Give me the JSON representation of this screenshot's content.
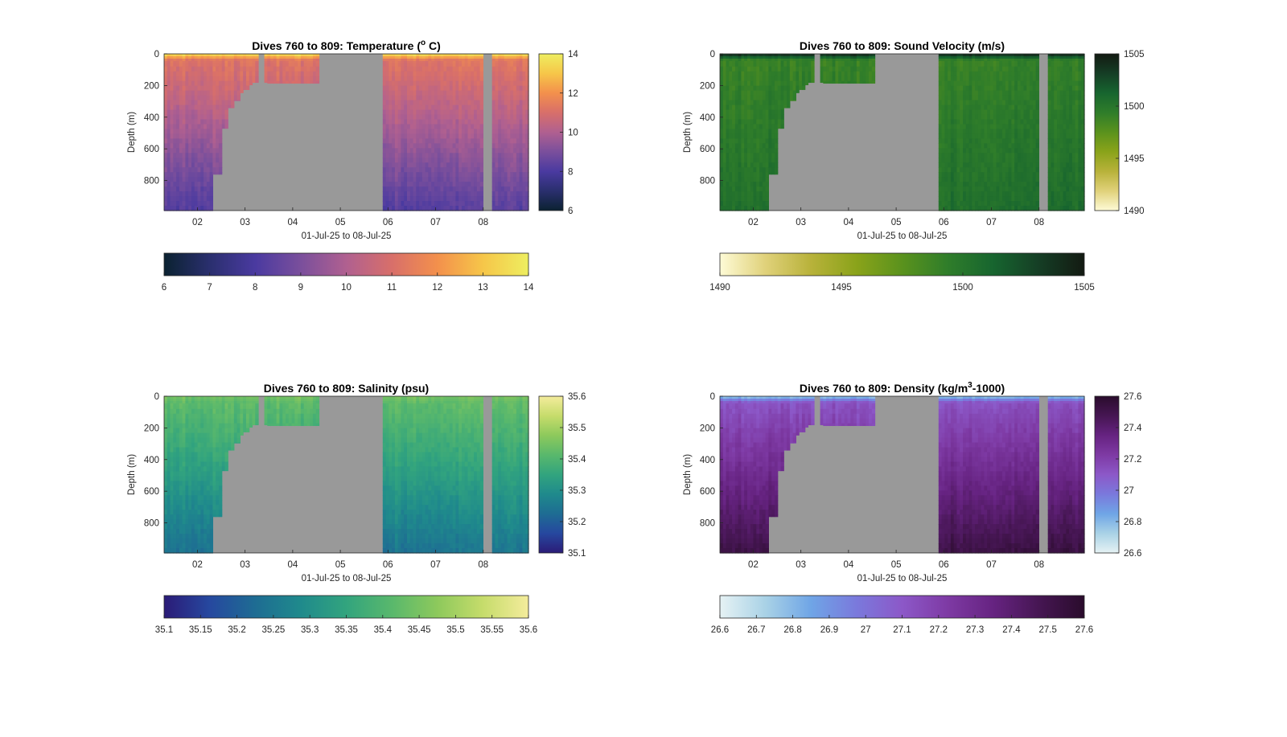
{
  "figure": {
    "background": "#ffffff",
    "land_color": "#999999"
  },
  "chart_data": [
    {
      "type": "heatmap",
      "title": "Dives 760 to 809: Temperature (° C)",
      "title_parts": [
        "Dives 760 to 809: Temperature (",
        "o",
        " C)"
      ],
      "title_style": "sup",
      "variable": "temperature",
      "xlabel": "01-Jul-25 to 08-Jul-25",
      "ylabel": "Depth (m)",
      "x_ticks": [
        "02",
        "03",
        "04",
        "05",
        "06",
        "07",
        "08"
      ],
      "xlim": [
        1.3,
        8.95
      ],
      "y_ticks": [
        0,
        200,
        400,
        600,
        800
      ],
      "ylim": [
        0,
        990
      ],
      "y_reversed": true,
      "clim": [
        6,
        14
      ],
      "side_colorbar_ticks": [
        "6",
        "8",
        "10",
        "12",
        "14"
      ],
      "bottom_colorbar_ticks": [
        "6",
        "7",
        "8",
        "9",
        "10",
        "11",
        "12",
        "13",
        "14"
      ],
      "colormap": [
        "#0b2231",
        "#2a2f6e",
        "#4a3aa0",
        "#7a4f9c",
        "#b06090",
        "#d86f6a",
        "#f3904c",
        "#f6c649",
        "#eeee60"
      ],
      "profile": {
        "surface": 13.7,
        "mixed_layer_depth": 40,
        "thermocline": 11.2,
        "deep": 8.2
      },
      "no_data_x_ranges": [
        [
          4.52,
          5.87
        ],
        [
          8.0,
          8.16
        ]
      ],
      "shallow_profiles": [
        [
          3.28,
          3.42,
          0
        ],
        [
          3.42,
          3.48,
          180
        ],
        [
          3.48,
          4.52,
          185
        ]
      ],
      "bathymetry_steps": [
        [
          2.35,
          760
        ],
        [
          2.5,
          470
        ],
        [
          2.65,
          340
        ],
        [
          2.78,
          295
        ],
        [
          2.88,
          245
        ],
        [
          2.98,
          225
        ],
        [
          3.08,
          195
        ],
        [
          3.18,
          180
        ],
        [
          3.28,
          180
        ]
      ]
    },
    {
      "type": "heatmap",
      "title": "Dives 760 to 809: Sound Velocity (m/s)",
      "title_parts": [
        "Dives 760 to 809: Sound Velocity (m/s)"
      ],
      "title_style": "plain",
      "variable": "sound_velocity",
      "xlabel": "01-Jul-25 to 08-Jul-25",
      "ylabel": "Depth (m)",
      "x_ticks": [
        "02",
        "03",
        "04",
        "05",
        "06",
        "07",
        "08"
      ],
      "xlim": [
        1.3,
        8.95
      ],
      "y_ticks": [
        0,
        200,
        400,
        600,
        800
      ],
      "ylim": [
        0,
        990
      ],
      "y_reversed": true,
      "clim": [
        1490,
        1505
      ],
      "side_colorbar_ticks": [
        "1490",
        "1495",
        "1500",
        "1505"
      ],
      "bottom_colorbar_ticks": [
        "1490",
        "1495",
        "1500",
        "1505"
      ],
      "colormap": [
        "#fefbd6",
        "#e0d17a",
        "#b8b23a",
        "#8aa31a",
        "#5a921d",
        "#2f7d2a",
        "#17652f",
        "#153e25",
        "#131a12"
      ],
      "profile": {
        "surface": 1504.5,
        "mixed_layer_depth": 40,
        "thermocline": 1499.0,
        "deep": 1500.5
      },
      "no_data_x_ranges": [
        [
          4.52,
          5.87
        ],
        [
          8.0,
          8.16
        ]
      ],
      "shallow_profiles": [
        [
          3.28,
          3.42,
          0
        ],
        [
          3.42,
          3.48,
          180
        ],
        [
          3.48,
          4.52,
          185
        ]
      ],
      "bathymetry_steps": [
        [
          2.35,
          760
        ],
        [
          2.5,
          470
        ],
        [
          2.65,
          340
        ],
        [
          2.78,
          295
        ],
        [
          2.88,
          245
        ],
        [
          2.98,
          225
        ],
        [
          3.08,
          195
        ],
        [
          3.18,
          180
        ],
        [
          3.28,
          180
        ]
      ]
    },
    {
      "type": "heatmap",
      "title": "Dives 760 to 809: Salinity (psu)",
      "title_parts": [
        "Dives 760 to 809: Salinity (psu)"
      ],
      "title_style": "plain",
      "variable": "salinity",
      "xlabel": "01-Jul-25 to 08-Jul-25",
      "ylabel": "Depth (m)",
      "x_ticks": [
        "02",
        "03",
        "04",
        "05",
        "06",
        "07",
        "08"
      ],
      "xlim": [
        1.3,
        8.95
      ],
      "y_ticks": [
        0,
        200,
        400,
        600,
        800
      ],
      "ylim": [
        0,
        990
      ],
      "y_reversed": true,
      "clim": [
        35.1,
        35.6
      ],
      "side_colorbar_ticks": [
        "35.1",
        "35.2",
        "35.3",
        "35.4",
        "35.5",
        "35.6"
      ],
      "bottom_colorbar_ticks": [
        "35.1",
        "35.15",
        "35.2",
        "35.25",
        "35.3",
        "35.35",
        "35.4",
        "35.45",
        "35.5",
        "35.55",
        "35.6"
      ],
      "colormap": [
        "#2b1b77",
        "#26489f",
        "#1e6c93",
        "#1f8a8c",
        "#32a47e",
        "#59b86c",
        "#8dc95c",
        "#c6dc6b",
        "#f4ec9c"
      ],
      "profile": {
        "surface": 35.45,
        "mixed_layer_depth": 40,
        "thermocline": 35.42,
        "deep": 35.24
      },
      "no_data_x_ranges": [
        [
          4.52,
          5.87
        ],
        [
          8.0,
          8.16
        ]
      ],
      "shallow_profiles": [
        [
          3.28,
          3.42,
          0
        ],
        [
          3.42,
          3.48,
          180
        ],
        [
          3.48,
          4.52,
          185
        ]
      ],
      "bathymetry_steps": [
        [
          2.35,
          760
        ],
        [
          2.5,
          470
        ],
        [
          2.65,
          340
        ],
        [
          2.78,
          295
        ],
        [
          2.88,
          245
        ],
        [
          2.98,
          225
        ],
        [
          3.08,
          195
        ],
        [
          3.18,
          180
        ],
        [
          3.28,
          180
        ]
      ]
    },
    {
      "type": "heatmap",
      "title": "Dives 760 to 809: Density (kg/m³-1000)",
      "title_parts": [
        "Dives 760 to 809: Density (kg/m",
        "3",
        "-1000)"
      ],
      "title_style": "sup",
      "variable": "density",
      "xlabel": "01-Jul-25 to 08-Jul-25",
      "ylabel": "Depth (m)",
      "x_ticks": [
        "02",
        "03",
        "04",
        "05",
        "06",
        "07",
        "08"
      ],
      "xlim": [
        1.3,
        8.95
      ],
      "y_ticks": [
        0,
        200,
        400,
        600,
        800
      ],
      "ylim": [
        0,
        990
      ],
      "y_reversed": true,
      "clim": [
        26.6,
        27.6
      ],
      "side_colorbar_ticks": [
        "26.6",
        "26.8",
        "27",
        "27.2",
        "27.4",
        "27.6"
      ],
      "bottom_colorbar_ticks": [
        "26.6",
        "26.7",
        "26.8",
        "26.9",
        "27",
        "27.1",
        "27.2",
        "27.3",
        "27.4",
        "27.5",
        "27.6"
      ],
      "colormap": [
        "#e6f2f4",
        "#a9d2e6",
        "#6fa5e6",
        "#7a79dc",
        "#8c58c8",
        "#7e3aa4",
        "#662381",
        "#461653",
        "#2a0c2c"
      ],
      "profile": {
        "surface": 26.75,
        "mixed_layer_depth": 40,
        "thermocline": 27.12,
        "deep": 27.52
      },
      "no_data_x_ranges": [
        [
          4.52,
          5.87
        ],
        [
          8.0,
          8.16
        ]
      ],
      "shallow_profiles": [
        [
          3.28,
          3.42,
          0
        ],
        [
          3.42,
          3.48,
          180
        ],
        [
          3.48,
          4.52,
          185
        ]
      ],
      "bathymetry_steps": [
        [
          2.35,
          760
        ],
        [
          2.5,
          470
        ],
        [
          2.65,
          340
        ],
        [
          2.78,
          295
        ],
        [
          2.88,
          245
        ],
        [
          2.98,
          225
        ],
        [
          3.08,
          195
        ],
        [
          3.18,
          180
        ],
        [
          3.28,
          180
        ]
      ]
    }
  ]
}
